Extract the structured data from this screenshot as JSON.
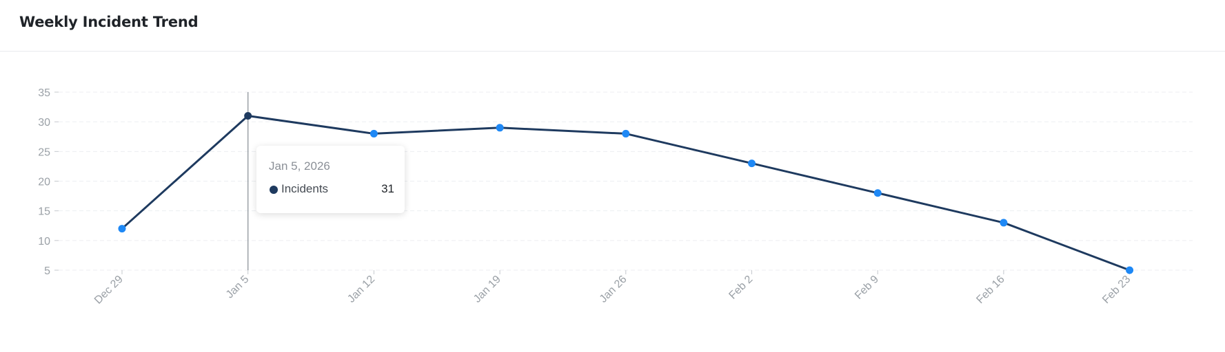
{
  "header": {
    "title": "Weekly Incident Trend"
  },
  "chart_data": {
    "type": "line",
    "title": "Weekly Incident Trend",
    "xlabel": "",
    "ylabel": "",
    "categories": [
      "Dec 29",
      "Jan 5",
      "Jan 12",
      "Jan 19",
      "Jan 26",
      "Feb 2",
      "Feb 9",
      "Feb 16",
      "Feb 23"
    ],
    "series": [
      {
        "name": "Incidents",
        "values": [
          12,
          31,
          28,
          29,
          28,
          23,
          18,
          13,
          5
        ]
      }
    ],
    "ylim": [
      5,
      35
    ],
    "yticks": [
      5,
      10,
      15,
      20,
      25,
      30,
      35
    ],
    "grid": true,
    "legend": "none",
    "colors": {
      "line": "#1e3a5f",
      "point": "#1e88f5",
      "active_point": "#1e3a5f",
      "grid": "#eceef1",
      "axis_text": "#9aa0a6"
    }
  },
  "tooltip": {
    "date": "Jan 5, 2026",
    "series": "Incidents",
    "value": "31",
    "active_index": 1
  }
}
